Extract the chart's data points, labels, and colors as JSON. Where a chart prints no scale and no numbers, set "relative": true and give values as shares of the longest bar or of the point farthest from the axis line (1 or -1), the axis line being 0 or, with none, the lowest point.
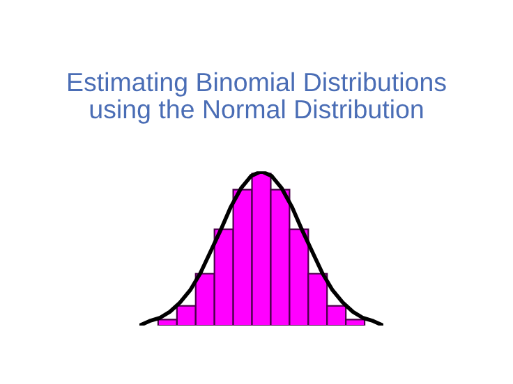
{
  "chart_data": [
    {
      "type": "bar",
      "title": "Estimating Binomial Distributions\nusing the Normal Distribution",
      "relative": true,
      "categories": [
        null,
        null,
        null,
        null,
        null,
        null,
        null,
        null,
        null,
        null,
        null
      ],
      "color": "#ff00ff",
      "values": [
        0.04,
        0.13,
        0.34,
        0.63,
        0.89,
        1,
        0.89,
        0.63,
        0.34,
        0.13,
        0.04
      ]
    },
    {
      "type": "line",
      "relative": true,
      "categories": [
        null,
        null,
        null,
        null,
        null,
        null,
        null,
        null,
        null,
        null,
        null,
        null,
        null,
        null,
        null,
        null,
        null,
        null,
        null,
        null,
        null,
        null,
        null,
        null,
        null
      ],
      "color": "#000000",
      "values": [
        0,
        0.03,
        0.05,
        0.09,
        0.15,
        0.23,
        0.34,
        0.48,
        0.62,
        0.77,
        0.89,
        0.97,
        1,
        0.97,
        0.89,
        0.77,
        0.62,
        0.48,
        0.34,
        0.23,
        0.15,
        0.09,
        0.05,
        0.03,
        0
      ]
    }
  ]
}
